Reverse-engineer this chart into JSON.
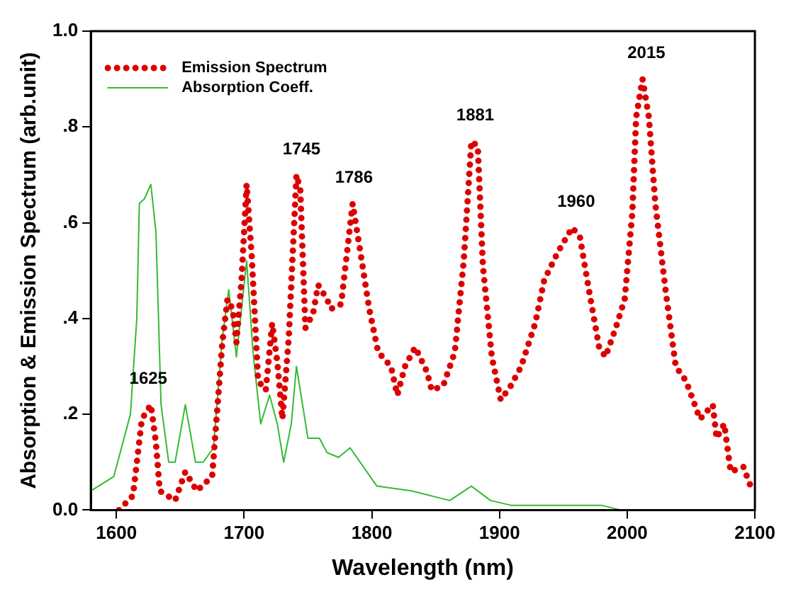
{
  "chart_data": {
    "type": "line",
    "xlabel": "Wavelength (nm)",
    "ylabel": "Absorption & Emission Spectrum (arb.unit)",
    "xlim": [
      1580,
      2100
    ],
    "xticks": [
      1600,
      1700,
      1800,
      1900,
      2000,
      2100
    ],
    "ylim": [
      0,
      1
    ],
    "yticks": [
      {
        "value": 0,
        "label": "0.0"
      },
      {
        "value": 0.2,
        "label": ".2"
      },
      {
        "value": 0.4,
        "label": ".4"
      },
      {
        "value": 0.6,
        "label": ".6"
      },
      {
        "value": 0.8,
        "label": ".8"
      },
      {
        "value": 1,
        "label": "1.0"
      }
    ],
    "grid": false,
    "legend": "top left",
    "series": [
      {
        "name": "Emission Spectrum",
        "color": "#dd0000",
        "line_style": "dotted",
        "marker": "none",
        "x": [
          1602,
          1613,
          1620,
          1627,
          1631,
          1634,
          1646,
          1654,
          1663,
          1675,
          1683,
          1687,
          1691,
          1694,
          1698,
          1702,
          1706,
          1711,
          1717,
          1722,
          1726,
          1730,
          1735,
          1741,
          1744,
          1748,
          1754,
          1758,
          1765,
          1768,
          1776,
          1785,
          1791,
          1798,
          1805,
          1815,
          1820,
          1826,
          1834,
          1843,
          1847,
          1856,
          1865,
          1872,
          1878,
          1883,
          1887,
          1894,
          1901,
          1909,
          1917,
          1928,
          1935,
          1946,
          1957,
          1963,
          1970,
          1978,
          1983,
          1991,
          1998,
          2004,
          2007,
          2012,
          2017,
          2022,
          2030,
          2038,
          2046,
          2057,
          2067,
          2070,
          2076,
          2081,
          2091,
          2098
        ],
        "values": [
          0.0,
          0.03,
          0.19,
          0.22,
          0.14,
          0.04,
          0.02,
          0.08,
          0.04,
          0.07,
          0.35,
          0.44,
          0.42,
          0.35,
          0.48,
          0.68,
          0.53,
          0.27,
          0.25,
          0.39,
          0.31,
          0.19,
          0.36,
          0.7,
          0.67,
          0.38,
          0.41,
          0.47,
          0.44,
          0.42,
          0.43,
          0.64,
          0.54,
          0.42,
          0.33,
          0.3,
          0.24,
          0.3,
          0.34,
          0.29,
          0.25,
          0.26,
          0.33,
          0.52,
          0.77,
          0.76,
          0.51,
          0.32,
          0.23,
          0.26,
          0.3,
          0.39,
          0.48,
          0.54,
          0.59,
          0.57,
          0.46,
          0.34,
          0.32,
          0.38,
          0.44,
          0.62,
          0.82,
          0.9,
          0.82,
          0.64,
          0.46,
          0.3,
          0.27,
          0.19,
          0.22,
          0.15,
          0.18,
          0.08,
          0.09,
          0.04
        ]
      },
      {
        "name": "Absorption Coeff.",
        "color": "#33bb33",
        "line_style": "solid",
        "marker": "none",
        "x": [
          1580,
          1598,
          1611,
          1616,
          1618,
          1622,
          1627,
          1631,
          1635,
          1641,
          1646,
          1654,
          1662,
          1668,
          1676,
          1683,
          1688,
          1694,
          1702,
          1707,
          1713,
          1720,
          1726,
          1731,
          1737,
          1741,
          1750,
          1759,
          1765,
          1774,
          1783,
          1804,
          1831,
          1861,
          1878,
          1893,
          1909,
          1940,
          1960,
          1980,
          1995
        ],
        "values": [
          0.04,
          0.07,
          0.2,
          0.4,
          0.64,
          0.65,
          0.68,
          0.58,
          0.22,
          0.1,
          0.1,
          0.22,
          0.1,
          0.1,
          0.13,
          0.36,
          0.46,
          0.32,
          0.52,
          0.33,
          0.18,
          0.24,
          0.18,
          0.1,
          0.18,
          0.3,
          0.15,
          0.15,
          0.12,
          0.11,
          0.13,
          0.05,
          0.04,
          0.02,
          0.05,
          0.02,
          0.01,
          0.01,
          0.01,
          0.01,
          0.0
        ]
      }
    ],
    "annotations": [
      {
        "text": "1625",
        "x": 1625,
        "y": 0.22
      },
      {
        "text": "1745",
        "x": 1745,
        "y": 0.7
      },
      {
        "text": "1786",
        "x": 1786,
        "y": 0.64
      },
      {
        "text": "1881",
        "x": 1881,
        "y": 0.77
      },
      {
        "text": "1960",
        "x": 1960,
        "y": 0.59
      },
      {
        "text": "2015",
        "x": 2015,
        "y": 0.9
      }
    ]
  }
}
